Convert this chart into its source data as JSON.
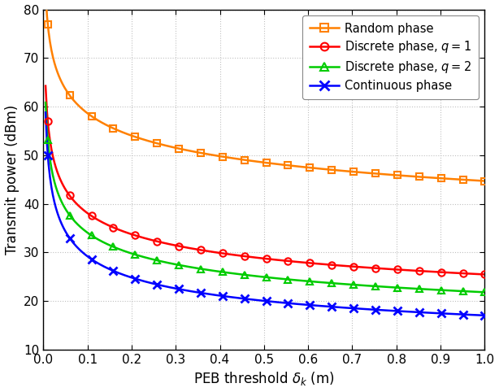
{
  "title": "",
  "xlabel": "PEB threshold $\\delta_k$ (m)",
  "ylabel": "Transmit power (dBm)",
  "xlim": [
    0.0,
    1.0
  ],
  "ylim": [
    10,
    80
  ],
  "xticks": [
    0.0,
    0.1,
    0.2,
    0.3,
    0.4,
    0.5,
    0.6,
    0.7,
    0.8,
    0.9,
    1.0
  ],
  "yticks": [
    10,
    20,
    30,
    40,
    50,
    60,
    70,
    80
  ],
  "series": [
    {
      "label": "Random phase",
      "color": "#FF8000",
      "marker": "s",
      "mfc": "none",
      "x_pts": [
        0.01,
        0.02,
        0.05,
        0.1,
        0.15,
        0.2,
        0.3,
        0.4,
        0.5,
        0.6,
        0.7,
        0.8,
        0.9,
        1.0
      ],
      "y_pts": [
        75.5,
        70.5,
        64.0,
        59.5,
        57.0,
        55.5,
        53.0,
        51.0,
        49.5,
        47.8,
        46.3,
        45.0,
        43.5,
        41.5
      ]
    },
    {
      "label": "Discrete phase, $q = 1$",
      "color": "#FF0000",
      "marker": "o",
      "mfc": "none",
      "x_pts": [
        0.01,
        0.02,
        0.05,
        0.1,
        0.15,
        0.2,
        0.3,
        0.4,
        0.5,
        0.6,
        0.7,
        0.8,
        0.9,
        1.0
      ],
      "y_pts": [
        55.0,
        49.0,
        44.0,
        40.5,
        38.5,
        36.5,
        33.5,
        31.5,
        29.5,
        27.5,
        26.0,
        24.5,
        23.0,
        21.0
      ]
    },
    {
      "label": "Discrete phase, $q = 2$",
      "color": "#00CC00",
      "marker": "^",
      "mfc": "none",
      "x_pts": [
        0.01,
        0.02,
        0.05,
        0.1,
        0.15,
        0.2,
        0.3,
        0.4,
        0.5,
        0.6,
        0.7,
        0.8,
        0.9,
        1.0
      ],
      "y_pts": [
        51.0,
        45.0,
        40.5,
        37.0,
        35.0,
        32.5,
        29.5,
        27.5,
        25.5,
        23.5,
        22.0,
        20.5,
        19.0,
        17.5
      ]
    },
    {
      "label": "Continuous phase",
      "color": "#0000FF",
      "marker": "x",
      "mfc": "#0000FF",
      "x_pts": [
        0.01,
        0.02,
        0.05,
        0.1,
        0.15,
        0.2,
        0.3,
        0.4,
        0.5,
        0.6,
        0.7,
        0.8,
        0.9,
        1.0
      ],
      "y_pts": [
        47.5,
        41.5,
        36.5,
        32.5,
        30.0,
        27.5,
        24.5,
        22.0,
        20.0,
        18.0,
        16.5,
        15.5,
        14.5,
        13.5
      ]
    }
  ],
  "figsize": [
    6.14,
    4.82
  ],
  "dpi": 100,
  "grid_color": "#C0C0C0",
  "grid_linestyle": ":",
  "background_color": "#FFFFFF",
  "legend_loc": "upper right",
  "n_smooth": 300,
  "n_markers": 21
}
